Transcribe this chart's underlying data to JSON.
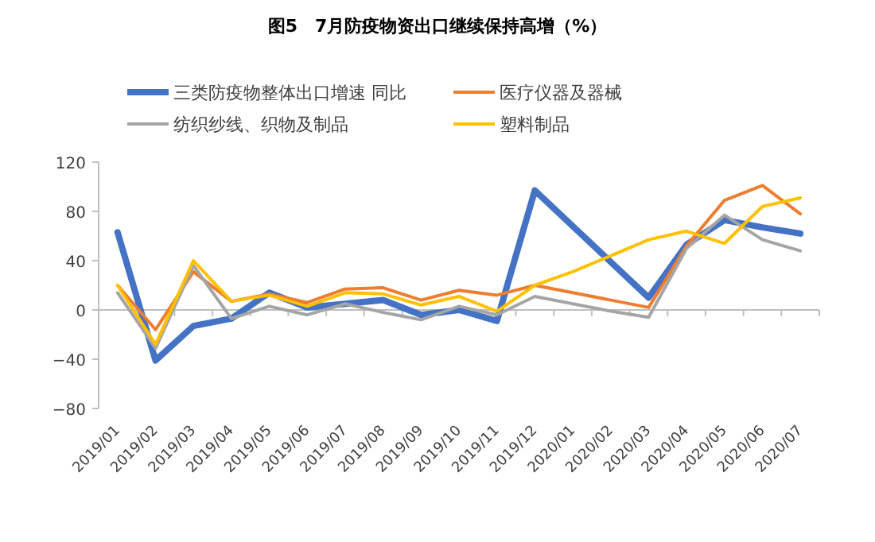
{
  "chart_data": {
    "type": "line",
    "title": "图5　7月防疫物资出口继续保持高增（%）",
    "categories": [
      "2019/01",
      "2019/02",
      "2019/03",
      "2019/04",
      "2019/05",
      "2019/06",
      "2019/07",
      "2019/08",
      "2019/09",
      "2019/10",
      "2019/11",
      "2019/12",
      "2020/01",
      "2020/02",
      "2020/03",
      "2020/04",
      "2020/05",
      "2020/06",
      "2020/07"
    ],
    "series": [
      {
        "name": "三类防疫物整体出口增速 同比",
        "color": "#4472c4",
        "values": [
          63,
          -41,
          -13,
          -7,
          14,
          2,
          5,
          8,
          -4,
          0,
          -9,
          97,
          68,
          39,
          10,
          53,
          73,
          67,
          62
        ]
      },
      {
        "name": "医疗仪器及器械",
        "color": "#ed7d31",
        "values": [
          20,
          -16,
          31,
          7,
          13,
          6,
          17,
          18,
          8,
          16,
          12,
          20,
          14,
          8,
          2,
          52,
          89,
          101,
          78
        ]
      },
      {
        "name": "纺织纱线、织物及制品",
        "color": "#a5a5a5",
        "values": [
          14,
          -31,
          36,
          -7,
          3,
          -4,
          5,
          -2,
          -8,
          3,
          -4,
          11,
          5,
          -1,
          -6,
          50,
          77,
          57,
          48
        ]
      },
      {
        "name": "塑料制品",
        "color": "#ffc000",
        "values": [
          20,
          -28,
          40,
          7,
          12,
          3,
          14,
          13,
          4,
          11,
          -1,
          20,
          31,
          44,
          57,
          64,
          54,
          84,
          91
        ]
      }
    ],
    "ylim": [
      -80,
      120
    ],
    "yticks": [
      -80,
      -40,
      0,
      40,
      80,
      120
    ],
    "legend": "top left"
  }
}
